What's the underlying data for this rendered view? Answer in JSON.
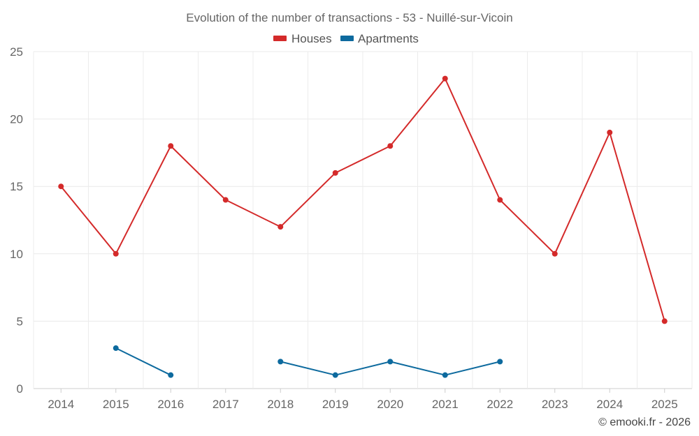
{
  "chart_data": {
    "type": "line",
    "title": "Evolution of the number of transactions - 53 - Nuillé-sur-Vicoin",
    "categories": [
      "2014",
      "2015",
      "2016",
      "2017",
      "2018",
      "2019",
      "2020",
      "2021",
      "2022",
      "2023",
      "2024",
      "2025"
    ],
    "series": [
      {
        "name": "Houses",
        "color": "#d42a2a",
        "values": [
          15,
          10,
          18,
          14,
          12,
          16,
          18,
          23,
          14,
          10,
          19,
          5
        ]
      },
      {
        "name": "Apartments",
        "color": "#0d6a9e",
        "values": [
          null,
          3,
          1,
          null,
          2,
          1,
          2,
          1,
          2,
          null,
          null,
          null
        ]
      }
    ],
    "ylim": [
      0,
      25
    ],
    "yticks": [
      0,
      5,
      10,
      15,
      20,
      25
    ],
    "grid": true,
    "legend": "top-center",
    "xlabel": "",
    "ylabel": ""
  },
  "credit": "© emooki.fr - 2026"
}
